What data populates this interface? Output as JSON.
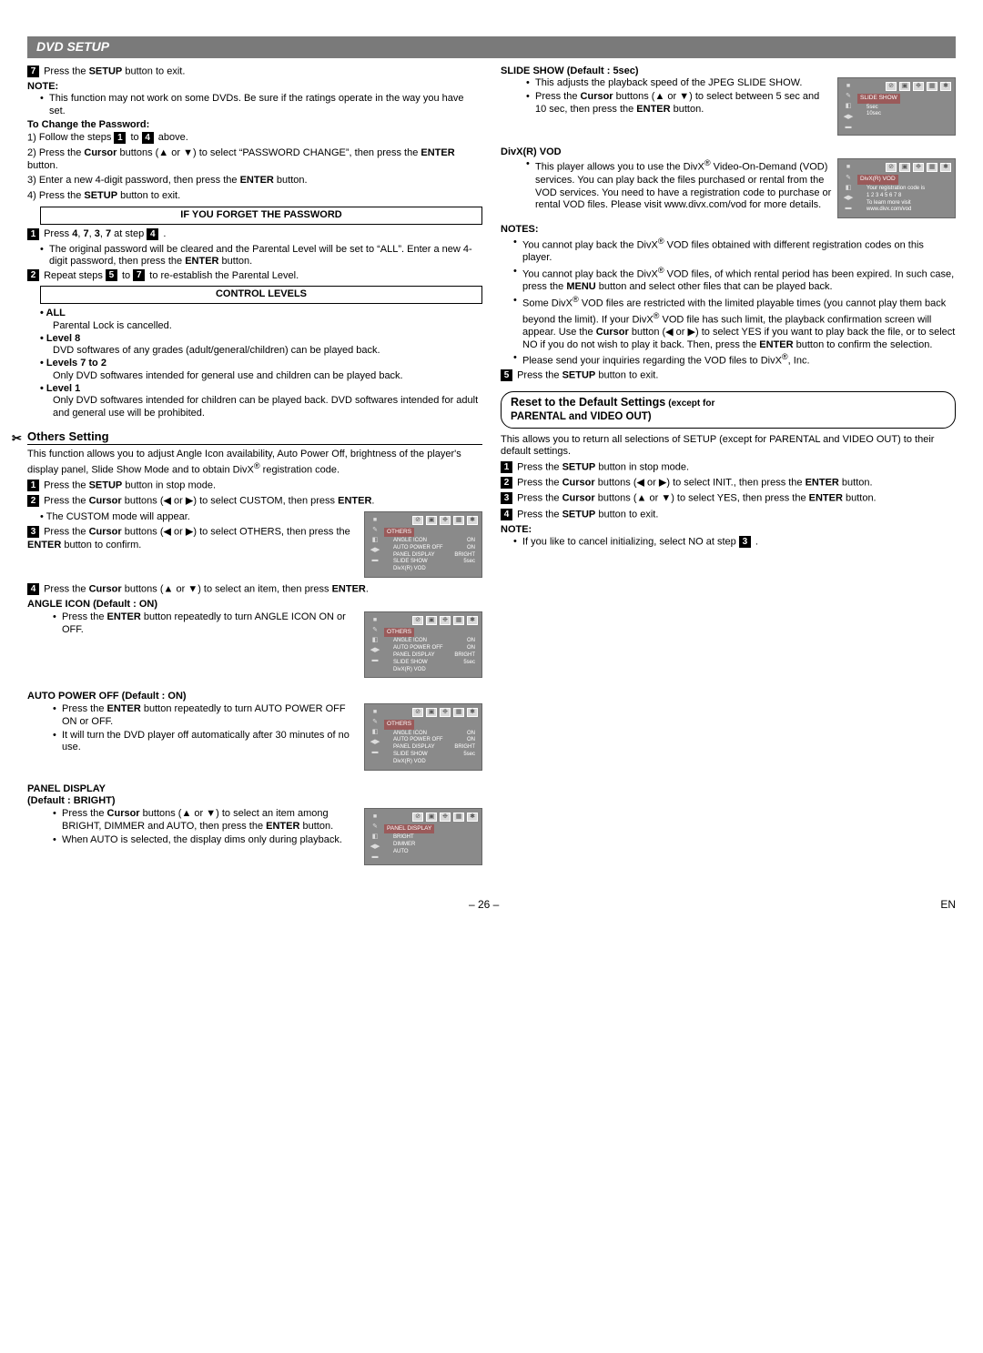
{
  "header": "DVD SETUP",
  "left": {
    "step7": "Press the <b>SETUP</b> button to exit.",
    "noteLabel": "NOTE:",
    "noteText": "This function may not work on some DVDs. Be sure if the ratings operate in the way you have set.",
    "changePwd": {
      "title": "To Change the Password:",
      "s1": "Follow the steps <span class='num'>1</span> to <span class='num'>4</span> above.",
      "s2": "Press the <b>Cursor</b> buttons (<span class='arrow'>▲</span> or <span class='arrow'>▼</span>) to select “PASSWORD CHANGE”, then press the <b>ENTER</b> button.",
      "s3": "Enter a new 4-digit password, then press the <b>ENTER</b> button.",
      "s4": "Press the <b>SETUP</b> button to exit."
    },
    "forgotBox": "IF YOU FORGET THE PASSWORD",
    "forgot": {
      "l1": "Press <b>4</b>, <b>7</b>, <b>3</b>, <b>7</b> at step <span class='num'>4</span> .",
      "l1b": "The original password will be cleared and the Parental Level will be set to “ALL”. Enter a new 4-digit password, then press the <b>ENTER</b> button.",
      "l2": "Repeat steps <span class='num'>5</span> to <span class='num'>7</span> to re-establish the Parental Level."
    },
    "controlBox": "CONTROL LEVELS",
    "levels": {
      "all": {
        "t": "ALL",
        "d": "Parental Lock is cancelled."
      },
      "l8": {
        "t": "Level 8",
        "d": "DVD softwares of any grades (adult/general/children) can be played back."
      },
      "l72": {
        "t": "Levels 7 to 2",
        "d": "Only DVD softwares intended for general use and children can be played back."
      },
      "l1": {
        "t": "Level 1",
        "d": "Only DVD softwares intended for children can be played back. DVD softwares intended for adult and general use will be prohibited."
      }
    },
    "others": {
      "title": "Others Setting",
      "intro": "This function allows you to adjust Angle Icon availability, Auto Power Off, brightness of the player's display panel, Slide Show Mode and to obtain DivX<sup>®</sup> registration code.",
      "s1": "Press the <b>SETUP</b> button in stop mode.",
      "s2": "Press the <b>Cursor</b> buttons (<span class='arrow'>◀</span> or <span class='arrow'>▶</span>) to select CUSTOM, then press <b>ENTER</b>.",
      "s2b": "The CUSTOM mode will appear.",
      "s3": "Press the <b>Cursor</b> buttons (<span class='arrow'>◀</span> or <span class='arrow'>▶</span>) to select OTHERS, then press the <b>ENTER</b> button to confirm.",
      "s4": "Press the <b>Cursor</b> buttons (<span class='arrow'>▲</span> or <span class='arrow'>▼</span>) to select an item, then press <b>ENTER</b>."
    },
    "angle": {
      "title": "ANGLE ICON (Default : ON)",
      "d": "Press the <b>ENTER</b> button repeatedly to turn ANGLE ICON ON or OFF."
    },
    "auto": {
      "title": "AUTO POWER OFF (Default : ON)",
      "d1": "Press the <b>ENTER</b> button repeatedly to turn AUTO POWER OFF ON or OFF.",
      "d2": "It will turn the DVD player off automatically after 30 minutes of no use."
    },
    "panel": {
      "title": "PANEL DISPLAY<br>(Default : BRIGHT)",
      "d1": "Press the <b>Cursor</b> buttons (<span class='arrow'>▲</span> or <span class='arrow'>▼</span>) to select an item among BRIGHT, DIMMER and AUTO, then press the <b>ENTER</b> button.",
      "d2": "When AUTO is selected, the display dims only during playback."
    }
  },
  "right": {
    "slide": {
      "title": "SLIDE SHOW (Default : 5sec)",
      "d1": "This adjusts the playback speed of the JPEG SLIDE SHOW.",
      "d2": "Press the <b>Cursor</b> buttons (<span class='arrow'>▲</span> or <span class='arrow'>▼</span>) to select between 5 sec and 10 sec, then press the <b>ENTER</b> button."
    },
    "divx": {
      "title": "DivX(R) VOD",
      "d": "This player allows you to use the DivX<sup>®</sup> Video-On-Demand (VOD) services. You can play back the files purchased or rental from the VOD services. You need to have a registration code to purchase or rental VOD files. Please visit www.divx.com/vod for more details."
    },
    "notesLabel": "NOTES:",
    "notes": {
      "n1": "You cannot play back the DivX<sup>®</sup> VOD files obtained with different registration codes on this player.",
      "n2": "You cannot play back the DivX<sup>®</sup> VOD files, of which rental period has been expired. In such case, press the <b>MENU</b> button and select other files that can be played back.",
      "n3": "Some DivX<sup>®</sup> VOD files are restricted with the limited playable times (you cannot play them back beyond the limit). If your DivX<sup>®</sup> VOD file has such limit, the playback confirmation screen will appear. Use the <b>Cursor</b> button (<span class='arrow'>◀</span> or <span class='arrow'>▶</span>) to select YES if you want to play back the file, or to select NO if you do not wish to play it back. Then, press the <b>ENTER</b> button to confirm the selection.",
      "n4": "Please send your inquiries regarding the VOD files to DivX<sup>®</sup>, Inc."
    },
    "s5": "Press the <b>SETUP</b> button to exit.",
    "reset": {
      "title1": "Reset to the Default Settings",
      "title1small": "(except for",
      "title2": "PARENTAL and VIDEO OUT)",
      "intro": "This allows you to return all selections of SETUP (except for PARENTAL and VIDEO OUT) to their default settings.",
      "r1": "Press the <b>SETUP</b> button in stop mode.",
      "r2": "Press the <b>Cursor</b> buttons (<span class='arrow'>◀</span> or <span class='arrow'>▶</span>) to select INIT., then press the <b>ENTER</b> button.",
      "r3": "Press the <b>Cursor</b> buttons (<span class='arrow'>▲</span> or <span class='arrow'>▼</span>) to select YES, then press the <b>ENTER</b> button.",
      "r4": "Press the <b>SETUP</b> button to exit.",
      "noteLabel": "NOTE:",
      "note": "If you like to cancel initializing, select NO at step <span class='num'>3</span> ."
    }
  },
  "thumbs": {
    "others_label": "OTHERS",
    "rows_main": [
      [
        "ANGLE ICON",
        "ON"
      ],
      [
        "AUTO POWER OFF",
        "ON"
      ],
      [
        "PANEL DISPLAY",
        "BRIGHT"
      ],
      [
        "SLIDE SHOW",
        "5sec"
      ],
      [
        "DivX(R) VOD",
        ""
      ]
    ],
    "panel_label": "PANEL DISPLAY",
    "panel_rows": [
      "BRIGHT",
      "DIMMER",
      "AUTO"
    ],
    "slide_label": "SLIDE SHOW",
    "slide_rows": [
      "5sec",
      "10sec"
    ],
    "divx_label": "DivX(R) VOD",
    "divx_rows": [
      "Your registration code is",
      "1 2 3 4 5 6 7 8",
      "To learn more visit",
      "www.divx.com/vod"
    ]
  },
  "footer": {
    "page": "– 26 –",
    "lang": "EN"
  }
}
